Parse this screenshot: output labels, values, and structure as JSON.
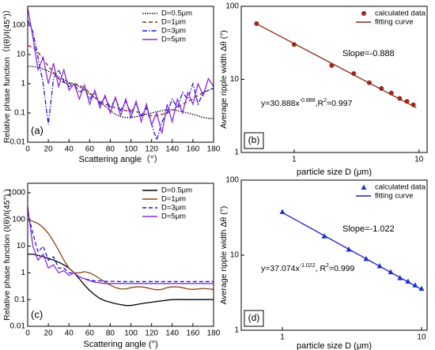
{
  "chart_data": [
    {
      "type": "line",
      "panel_label": "(a)",
      "ylabel": "Relative phase function（I(θ)/I(45°)）",
      "xlabel": "Scattering angle（°）",
      "log_y": true,
      "xlim": [
        0,
        180
      ],
      "ylim": [
        0.01,
        446
      ],
      "xticks": [
        0,
        20,
        40,
        60,
        80,
        100,
        120,
        140,
        160,
        180
      ],
      "yticks": [
        0.01,
        0.1,
        1,
        10,
        100
      ],
      "legend": "upper right",
      "x": [
        0,
        5,
        10,
        15,
        20,
        25,
        30,
        35,
        40,
        45,
        50,
        55,
        60,
        65,
        70,
        75,
        80,
        85,
        90,
        95,
        100,
        105,
        110,
        115,
        120,
        125,
        130,
        135,
        140,
        145,
        150,
        155,
        160,
        165,
        170,
        175,
        180
      ],
      "series": [
        {
          "name": "D=0.5μm",
          "color": "#000000",
          "style": "dotted",
          "values": [
            4,
            3.9,
            3.6,
            3.2,
            2.7,
            2.2,
            1.7,
            1.4,
            1.1,
            1,
            0.8,
            0.6,
            0.45,
            0.33,
            0.24,
            0.17,
            0.12,
            0.09,
            0.075,
            0.07,
            0.07,
            0.075,
            0.08,
            0.09,
            0.1,
            0.11,
            0.12,
            0.13,
            0.13,
            0.12,
            0.11,
            0.1,
            0.09,
            0.08,
            0.07,
            0.065,
            0.065
          ]
        },
        {
          "name": "D=1μm",
          "color": "#8b2a0e",
          "style": "dashed",
          "values": [
            20,
            18,
            12,
            7,
            4,
            2.5,
            1.5,
            1.1,
            1,
            1,
            0.9,
            0.7,
            0.5,
            0.35,
            0.25,
            0.2,
            0.17,
            0.15,
            0.13,
            0.12,
            0.12,
            0.11,
            0.1,
            0.09,
            0.08,
            0.08,
            0.09,
            0.1,
            0.12,
            0.15,
            0.2,
            0.25,
            0.3,
            0.4,
            0.5,
            0.6,
            0.7
          ]
        },
        {
          "name": "D=3μm",
          "color": "#1a1ad0",
          "style": "dashdot",
          "values": [
            150,
            60,
            8,
            1,
            0.04,
            1.5,
            3,
            1.2,
            0.8,
            1,
            0.5,
            0.7,
            0.3,
            0.5,
            0.2,
            0.35,
            0.15,
            0.3,
            0.12,
            0.25,
            0.1,
            0.2,
            0.08,
            0.15,
            0.04,
            0.012,
            0.05,
            0.1,
            0.3,
            0.15,
            0.5,
            0.3,
            1,
            0.2,
            0.5,
            0.6,
            0.7
          ]
        },
        {
          "name": "D=5μm",
          "color": "#8a2be2",
          "style": "solid",
          "values": [
            400,
            40,
            3,
            8,
            1,
            5,
            0.8,
            3,
            0.6,
            1,
            0.3,
            0.9,
            0.2,
            0.6,
            0.15,
            0.4,
            0.1,
            0.35,
            0.08,
            0.3,
            0.07,
            0.25,
            0.05,
            0.2,
            0.04,
            0.1,
            0.02,
            0.2,
            0.05,
            0.3,
            0.1,
            0.5,
            0.2,
            1,
            0.4,
            1.5,
            0.8
          ]
        }
      ]
    },
    {
      "type": "scatter",
      "panel_label": "(b)",
      "ylabel": "Average ripple width Δθ (°)",
      "xlabel": "particle size D (μm)",
      "log_x": true,
      "log_y": true,
      "xlim": [
        0.377,
        11.6
      ],
      "ylim": [
        1,
        100
      ],
      "xticks": [
        1,
        10
      ],
      "yticks": [
        1,
        10,
        100
      ],
      "legend": "upper right",
      "slope_label": "Slope=-0.888",
      "fit_label": [
        "y=30.888x",
        "-0.888",
        ",R",
        "2",
        "=0.997"
      ],
      "series": [
        {
          "name": "calculated data",
          "color": "#a0281e",
          "marker": "circle",
          "x": [
            0.5,
            1,
            2,
            3,
            4,
            5,
            6,
            7,
            8,
            9
          ],
          "values": [
            58,
            30,
            15.5,
            12,
            9,
            7.5,
            6.5,
            5.5,
            5,
            4.5
          ]
        },
        {
          "name": "fitting curve",
          "color": "#8b2a0e",
          "marker": "line",
          "x": [
            0.5,
            9.5
          ],
          "values": [
            57.5,
            4.1
          ]
        }
      ]
    },
    {
      "type": "line",
      "panel_label": "(c)",
      "ylabel": "Relative phase function (I(θ)/I(45°) )",
      "xlabel": "Scattering angle (°)",
      "log_y": true,
      "xlim": [
        0,
        180
      ],
      "ylim": [
        0.01,
        2250
      ],
      "xticks": [
        0,
        20,
        40,
        60,
        80,
        100,
        120,
        140,
        160,
        180
      ],
      "yticks": [
        0.01,
        0.1,
        1,
        10,
        100,
        1000
      ],
      "legend": "upper right",
      "x": [
        0,
        5,
        10,
        15,
        20,
        25,
        30,
        35,
        40,
        45,
        50,
        55,
        60,
        65,
        70,
        75,
        80,
        85,
        90,
        95,
        100,
        105,
        110,
        115,
        120,
        125,
        130,
        135,
        140,
        145,
        150,
        155,
        160,
        165,
        170,
        175,
        180
      ],
      "series": [
        {
          "name": "D=0.5μm",
          "color": "#000000",
          "style": "solid",
          "values": [
            5,
            5,
            4.5,
            4,
            3.5,
            3,
            2.5,
            2,
            1.5,
            1,
            0.6,
            0.35,
            0.22,
            0.15,
            0.11,
            0.09,
            0.08,
            0.07,
            0.065,
            0.06,
            0.06,
            0.065,
            0.07,
            0.075,
            0.08,
            0.085,
            0.09,
            0.095,
            0.1,
            0.1,
            0.1,
            0.1,
            0.1,
            0.1,
            0.1,
            0.1,
            0.1
          ]
        },
        {
          "name": "D=1μm",
          "color": "#8b4513",
          "style": "solid",
          "values": [
            90,
            85,
            70,
            50,
            30,
            15,
            7,
            3,
            1.5,
            1,
            1,
            1.1,
            1,
            0.8,
            0.6,
            0.45,
            0.35,
            0.28,
            0.25,
            0.25,
            0.28,
            0.3,
            0.3,
            0.28,
            0.25,
            0.23,
            0.24,
            0.28,
            0.3,
            0.3,
            0.28,
            0.25,
            0.24,
            0.25,
            0.26,
            0.25,
            0.24
          ]
        },
        {
          "name": "D=3μm",
          "color": "#1a1ad0",
          "style": "dashed",
          "values": [
            200,
            30,
            6,
            10,
            3,
            4,
            1.5,
            1.5,
            1,
            1,
            0.7,
            0.6,
            0.55,
            0.5,
            0.5,
            0.48,
            0.48,
            0.48,
            0.47,
            0.47,
            0.47,
            0.47,
            0.47,
            0.47,
            0.47,
            0.47,
            0.47,
            0.47,
            0.47,
            0.47,
            0.47,
            0.47,
            0.47,
            0.47,
            0.47,
            0.47,
            0.47
          ]
        },
        {
          "name": "D=5μm",
          "color": "#8a2be2",
          "style": "solid",
          "values": [
            300,
            10,
            3,
            5,
            1.5,
            2,
            1,
            1.2,
            0.8,
            1,
            0.7,
            0.6,
            0.5,
            0.45,
            0.42,
            0.4,
            0.4,
            0.4,
            0.4,
            0.4,
            0.4,
            0.4,
            0.4,
            0.4,
            0.4,
            0.4,
            0.4,
            0.4,
            0.4,
            0.4,
            0.4,
            0.4,
            0.4,
            0.4,
            0.4,
            0.4,
            0.4
          ]
        }
      ]
    },
    {
      "type": "scatter",
      "panel_label": "(d)",
      "ylabel": "Average ripple width Δθ (°)",
      "xlabel": "particle size D (μm)",
      "log_x": true,
      "log_y": true,
      "xlim": [
        0.506,
        10.96
      ],
      "ylim": [
        1,
        100
      ],
      "xticks": [
        1,
        10
      ],
      "yticks": [
        1,
        10,
        100
      ],
      "legend": "upper right",
      "slope_label": "Slope=-1.022",
      "fit_label": [
        "y=37.074x",
        "-1.022",
        ", R",
        "2",
        "=0.999"
      ],
      "series": [
        {
          "name": "calculated data",
          "color": "#1a3ad0",
          "marker": "triangle",
          "x": [
            1,
            2,
            3,
            4,
            5,
            6,
            7,
            8,
            9,
            10
          ],
          "values": [
            38,
            18,
            12,
            9,
            7.2,
            6,
            5,
            4.5,
            4,
            3.6
          ]
        },
        {
          "name": "fitting curve",
          "color": "#1a1ad0",
          "marker": "line",
          "x": [
            1,
            10
          ],
          "values": [
            37,
            3.5
          ]
        }
      ]
    }
  ]
}
